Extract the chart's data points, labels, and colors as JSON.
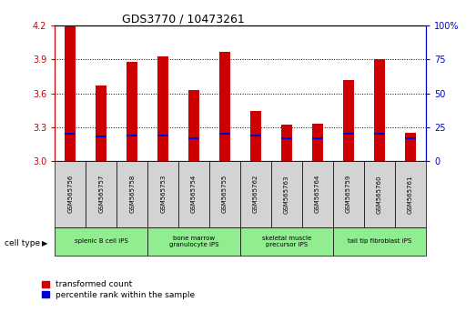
{
  "title": "GDS3770 / 10473261",
  "samples": [
    "GSM565756",
    "GSM565757",
    "GSM565758",
    "GSM565753",
    "GSM565754",
    "GSM565755",
    "GSM565762",
    "GSM565763",
    "GSM565764",
    "GSM565759",
    "GSM565760",
    "GSM565761"
  ],
  "transformed_count": [
    4.2,
    3.67,
    3.88,
    3.93,
    3.63,
    3.97,
    3.44,
    3.32,
    3.33,
    3.72,
    3.9,
    3.25
  ],
  "percentile_rank_values": [
    0.2,
    0.18,
    0.19,
    0.19,
    0.17,
    0.2,
    0.19,
    0.17,
    0.17,
    0.2,
    0.2,
    0.17
  ],
  "bar_bottom": 3.0,
  "ylim_left": [
    3.0,
    4.2
  ],
  "ylim_right": [
    0,
    100
  ],
  "yticks_left": [
    3.0,
    3.3,
    3.6,
    3.9,
    4.2
  ],
  "yticks_right": [
    0,
    25,
    50,
    75,
    100
  ],
  "bar_color": "#cc0000",
  "percentile_color": "#0000cc",
  "cell_types": [
    {
      "label": "splenic B cell iPS",
      "start": 0,
      "end": 2
    },
    {
      "label": "bone marrow\ngranulocyte iPS",
      "start": 3,
      "end": 5
    },
    {
      "label": "skeletal muscle\nprecursor iPS",
      "start": 6,
      "end": 8
    },
    {
      "label": "tail tip fibroblast iPS",
      "start": 9,
      "end": 11
    }
  ],
  "cell_type_bg": "#90ee90",
  "sample_bg": "#d3d3d3",
  "bar_width": 0.35,
  "legend_red_label": "transformed count",
  "legend_blue_label": "percentile rank within the sample",
  "right_axis_color": "#0000cc",
  "left_axis_color": "#cc0000",
  "figsize": [
    5.23,
    3.54
  ],
  "dpi": 100
}
